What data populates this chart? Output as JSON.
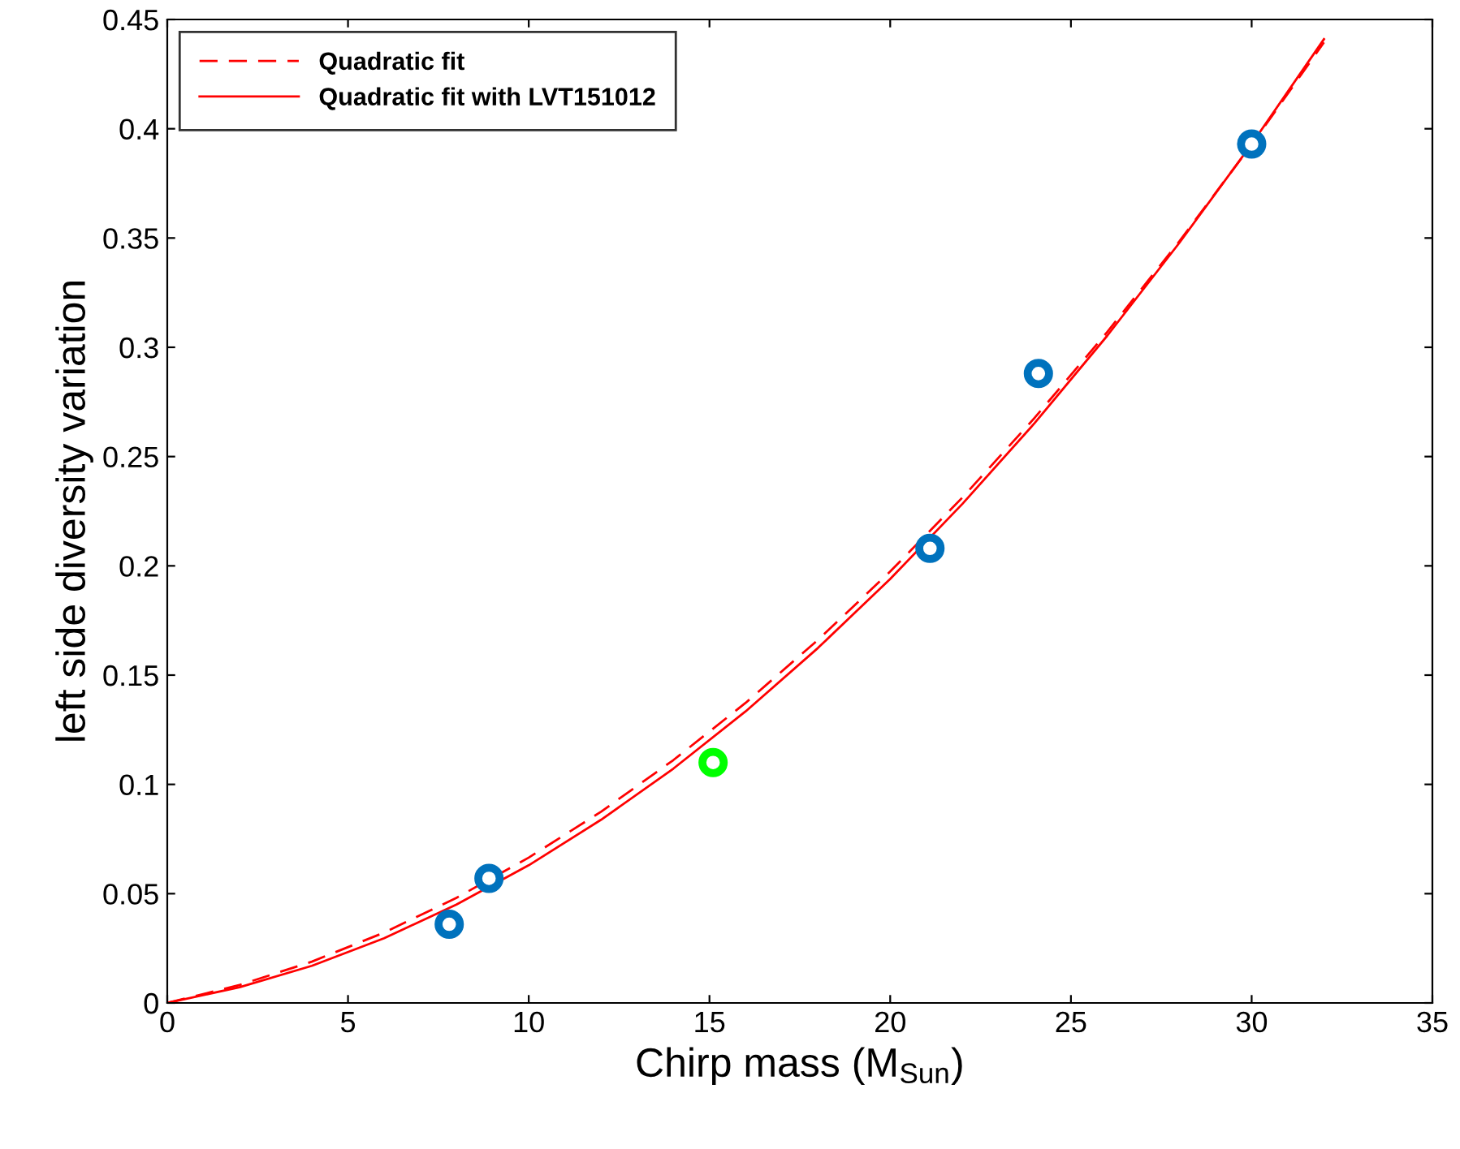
{
  "chart_data": {
    "type": "line",
    "xlabel": "Chirp mass (M$_{Sun}$)",
    "ylabel": "left side diversity variation",
    "xlim": [
      0,
      35
    ],
    "ylim": [
      0,
      0.45
    ],
    "xticks": [
      0,
      5,
      10,
      15,
      20,
      25,
      30,
      35
    ],
    "yticks": [
      0,
      0.05,
      0.1,
      0.15,
      0.2,
      0.25,
      0.3,
      0.35,
      0.4,
      0.45
    ],
    "grid": false,
    "legend": "top left",
    "series": [
      {
        "name": "Quadratic fit",
        "line_style": "dashed",
        "color": "#ff0000",
        "x": [
          0,
          2,
          4,
          6,
          8,
          10,
          12,
          14,
          16,
          18,
          20,
          22,
          24,
          26,
          28,
          30,
          32
        ],
        "values": [
          0,
          0.0082,
          0.0189,
          0.0322,
          0.0481,
          0.0665,
          0.0875,
          0.1111,
          0.1373,
          0.1661,
          0.1974,
          0.2313,
          0.2678,
          0.3069,
          0.3485,
          0.3927,
          0.4395
        ]
      },
      {
        "name": "Quadratic fit with LVT151012",
        "line_style": "solid",
        "color": "#ff0000",
        "x": [
          0,
          2,
          4,
          6,
          8,
          10,
          12,
          14,
          16,
          18,
          20,
          22,
          24,
          26,
          28,
          30,
          32
        ],
        "values": [
          0,
          0.0072,
          0.017,
          0.0296,
          0.045,
          0.063,
          0.0838,
          0.1072,
          0.1334,
          0.1624,
          0.194,
          0.2284,
          0.2654,
          0.3052,
          0.3478,
          0.393,
          0.441
        ]
      },
      {
        "type": "scatter",
        "marker": "circle",
        "x": [
          7.8,
          8.9,
          15.1,
          21.1,
          24.1,
          30.0
        ],
        "values": [
          0.036,
          0.057,
          0.11,
          0.208,
          0.288,
          0.393
        ],
        "colors": [
          "#0072bd",
          "#0072bd",
          "#00ff00",
          "#0072bd",
          "#0072bd",
          "#0072bd"
        ]
      }
    ]
  }
}
